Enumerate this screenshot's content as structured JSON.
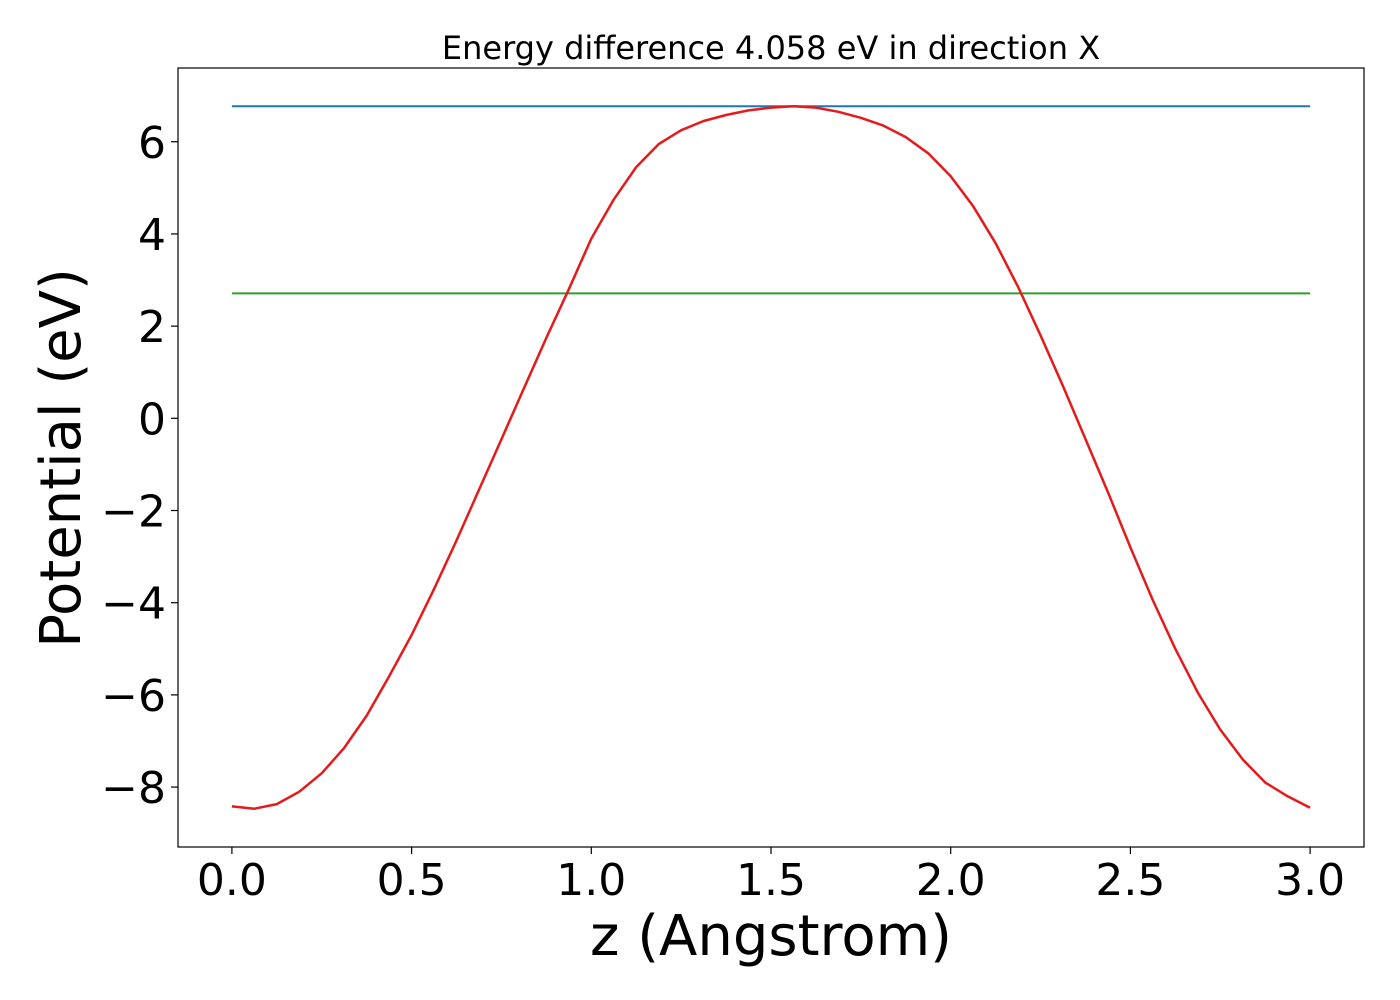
{
  "chart_data": {
    "type": "line",
    "title": "Energy difference 4.058 eV in direction X",
    "xlabel": "z (Angstrom)",
    "ylabel": "Potential (eV)",
    "xlim": [
      -0.15,
      3.15
    ],
    "ylim": [
      -9.3,
      7.6
    ],
    "grid": false,
    "xticks": [
      0.0,
      0.5,
      1.0,
      1.5,
      2.0,
      2.5,
      3.0
    ],
    "xtick_labels": [
      "0.0",
      "0.5",
      "1.0",
      "1.5",
      "2.0",
      "2.5",
      "3.0"
    ],
    "yticks": [
      -8,
      -6,
      -4,
      -2,
      0,
      2,
      4,
      6
    ],
    "ytick_labels": [
      "−8",
      "−6",
      "−4",
      "−2",
      "0",
      "2",
      "4",
      "6"
    ],
    "series": [
      {
        "color": "#1f77b4",
        "x": [
          0.0,
          3.0
        ],
        "y": [
          6.77,
          6.77
        ]
      },
      {
        "color": "#2ca02c",
        "x": [
          0.0,
          3.0
        ],
        "y": [
          2.71,
          2.71
        ]
      },
      {
        "color": "#e41a1c",
        "x": [
          0.0,
          0.0625,
          0.125,
          0.1875,
          0.25,
          0.3125,
          0.375,
          0.4375,
          0.5,
          0.5625,
          0.625,
          0.6875,
          0.75,
          0.8125,
          0.875,
          0.9375,
          1.0,
          1.0625,
          1.125,
          1.1875,
          1.25,
          1.3125,
          1.375,
          1.4375,
          1.5,
          1.5625,
          1.625,
          1.6875,
          1.75,
          1.8125,
          1.875,
          1.9375,
          2.0,
          2.0625,
          2.125,
          2.1875,
          2.25,
          2.3125,
          2.375,
          2.4375,
          2.5,
          2.5625,
          2.625,
          2.6875,
          2.75,
          2.8125,
          2.875,
          2.9375,
          3.0
        ],
        "y": [
          -8.42,
          -8.47,
          -8.37,
          -8.1,
          -7.7,
          -7.15,
          -6.45,
          -5.6,
          -4.7,
          -3.7,
          -2.65,
          -1.55,
          -0.45,
          0.65,
          1.75,
          2.8,
          3.9,
          4.75,
          5.45,
          5.95,
          6.25,
          6.45,
          6.58,
          6.68,
          6.74,
          6.77,
          6.74,
          6.65,
          6.52,
          6.35,
          6.1,
          5.75,
          5.25,
          4.6,
          3.8,
          2.85,
          1.8,
          0.7,
          -0.45,
          -1.6,
          -2.8,
          -3.95,
          -5.0,
          -5.95,
          -6.75,
          -7.4,
          -7.9,
          -8.2,
          -8.45
        ]
      }
    ]
  }
}
